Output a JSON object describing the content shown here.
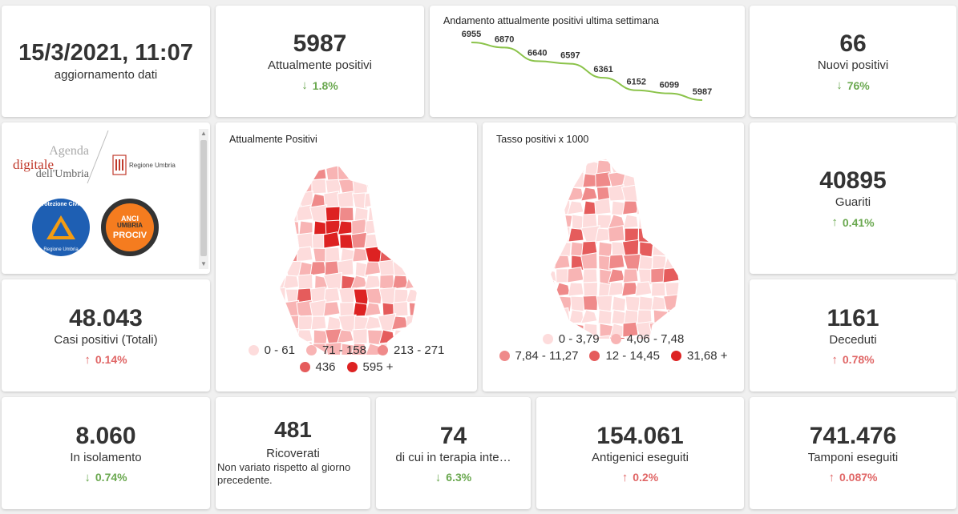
{
  "update": {
    "datetime": "15/3/2021, 11:07",
    "label": "aggiornamento dati"
  },
  "attuali": {
    "value": "5987",
    "label": "Attualmente positivi",
    "delta": "1.8%",
    "direction": "down"
  },
  "trend": {
    "title": "Andamento attualmente positivi ultima settimana",
    "chart_data": {
      "type": "line",
      "title": "Andamento attualmente positivi ultima settimana",
      "values": [
        6955,
        6870,
        6640,
        6597,
        6361,
        6152,
        6099,
        5987
      ],
      "labels": [
        "6955",
        "6870",
        "6640",
        "6597",
        "6361",
        "6152",
        "6099",
        "5987"
      ],
      "color": "#8bc34a"
    }
  },
  "nuovi": {
    "value": "66",
    "label": "Nuovi positivi",
    "delta": "76%",
    "direction": "down"
  },
  "logos": {
    "agenda_line1": "Agenda",
    "agenda_line2": "digitale",
    "agenda_line3": "dell'Umbria",
    "regione": "Regione Umbria",
    "protezione": "Protezione Civile",
    "protezione_sub": "Regione Umbria",
    "anci_line1": "ANCI",
    "anci_line2": "UMBRIA",
    "anci_line3": "PROCIV"
  },
  "map1": {
    "title": "Attualmente Positivi",
    "legend": [
      {
        "label": "0 - 61",
        "color": "#fddcdc"
      },
      {
        "label": "71 - 158",
        "color": "#f8b4b4"
      },
      {
        "label": "213 - 271",
        "color": "#ef8a8a"
      },
      {
        "label": "436",
        "color": "#e55c5c"
      },
      {
        "label": "595 +",
        "color": "#dd2222"
      }
    ]
  },
  "map2": {
    "title": "Tasso positivi x 1000",
    "legend": [
      {
        "label": "0 - 3,79",
        "color": "#fddcdc"
      },
      {
        "label": "4,06 - 7,48",
        "color": "#f8b4b4"
      },
      {
        "label": "7,84 - 11,27",
        "color": "#ef8a8a"
      },
      {
        "label": "12 - 14,45",
        "color": "#e55c5c"
      },
      {
        "label": "31,68 +",
        "color": "#dd2222"
      }
    ]
  },
  "guariti": {
    "value": "40895",
    "label": "Guariti",
    "delta": "0.41%",
    "direction": "up"
  },
  "casi": {
    "value": "48.043",
    "label": "Casi positivi (Totali)",
    "delta": "0.14%",
    "direction": "up"
  },
  "deceduti": {
    "value": "1161",
    "label": "Deceduti",
    "delta": "0.78%",
    "direction": "up"
  },
  "isolamento": {
    "value": "8.060",
    "label": "In isolamento",
    "delta": "0.74%",
    "direction": "down"
  },
  "ricoverati": {
    "value": "481",
    "label": "Ricoverati",
    "note": "Non variato rispetto al giorno precedente."
  },
  "terapia": {
    "value": "74",
    "label": "di cui in terapia inte…",
    "delta": "6.3%",
    "direction": "down"
  },
  "antigenici": {
    "value": "154.061",
    "label": "Antigenici eseguiti",
    "delta": "0.2%",
    "direction": "up"
  },
  "tamponi": {
    "value": "741.476",
    "label": "Tamponi eseguiti",
    "delta": "0.087%",
    "direction": "up"
  }
}
